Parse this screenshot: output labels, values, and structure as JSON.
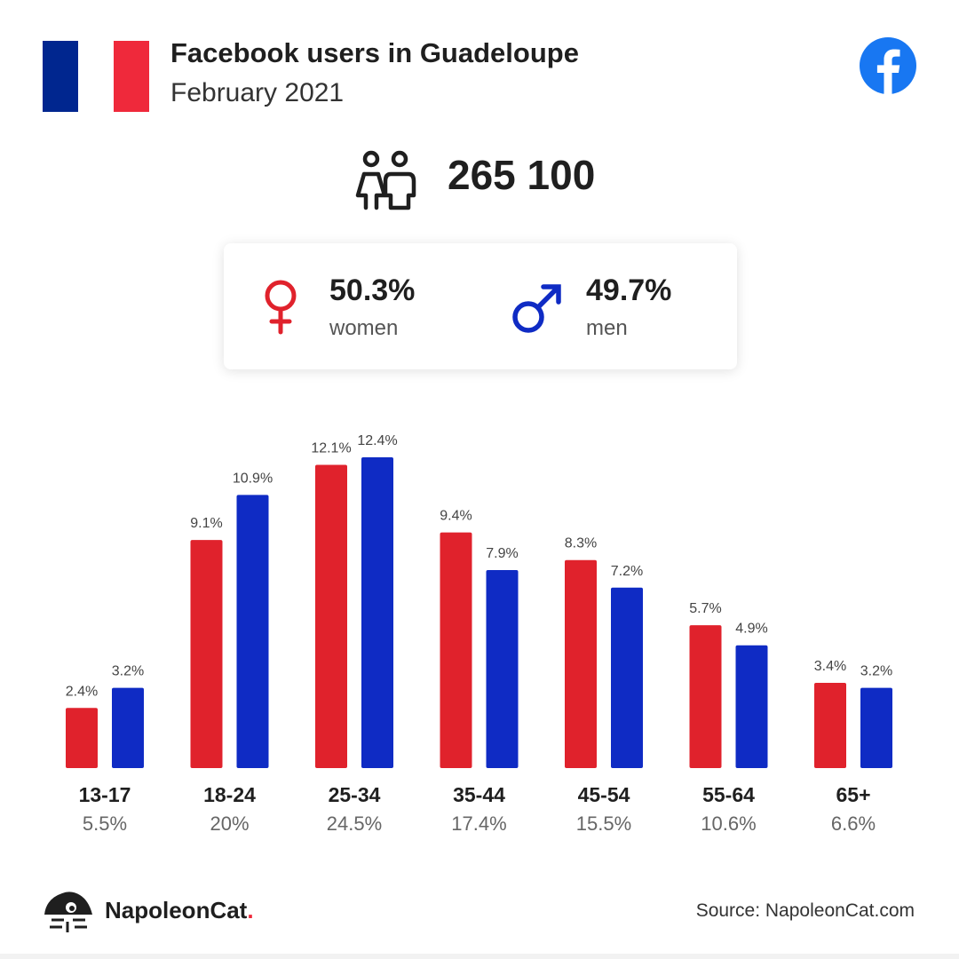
{
  "header": {
    "title": "Facebook users in Guadeloupe",
    "subtitle": "February 2021"
  },
  "flag_colors": [
    "#00268f",
    "#ffffff",
    "#ef293b"
  ],
  "total": {
    "icon": "couple-icon",
    "value": "265 100"
  },
  "gender": {
    "women": {
      "icon": "female-symbol-icon",
      "percent": "50.3%",
      "label": "women",
      "color": "#e0222c"
    },
    "men": {
      "icon": "male-symbol-icon",
      "percent": "49.7%",
      "label": "men",
      "color": "#0f2bc4"
    }
  },
  "chart_data": {
    "type": "bar",
    "categories": [
      "13-17",
      "18-24",
      "25-34",
      "35-44",
      "45-54",
      "55-64",
      "65+"
    ],
    "category_shares": [
      "5.5%",
      "20%",
      "24.5%",
      "17.4%",
      "15.5%",
      "10.6%",
      "6.6%"
    ],
    "series": [
      {
        "values": [
          2.4,
          9.1,
          12.1,
          9.4,
          8.3,
          5.7,
          3.4
        ],
        "labels": [
          "2.4%",
          "9.1%",
          "12.1%",
          "9.4%",
          "8.3%",
          "5.7%",
          "3.4%"
        ],
        "color": "#e0222c"
      },
      {
        "values": [
          3.2,
          10.9,
          12.4,
          7.9,
          7.2,
          4.9,
          3.2
        ],
        "labels": [
          "3.2%",
          "10.9%",
          "12.4%",
          "7.9%",
          "7.2%",
          "4.9%",
          "3.2%"
        ],
        "color": "#0f2bc4"
      }
    ],
    "ylim": [
      0,
      12.4
    ],
    "grid": false,
    "legend": "none"
  },
  "footer": {
    "brand_name": "NapoleonCat",
    "brand_dot": ".",
    "source": "Source: NapoleonCat.com"
  }
}
